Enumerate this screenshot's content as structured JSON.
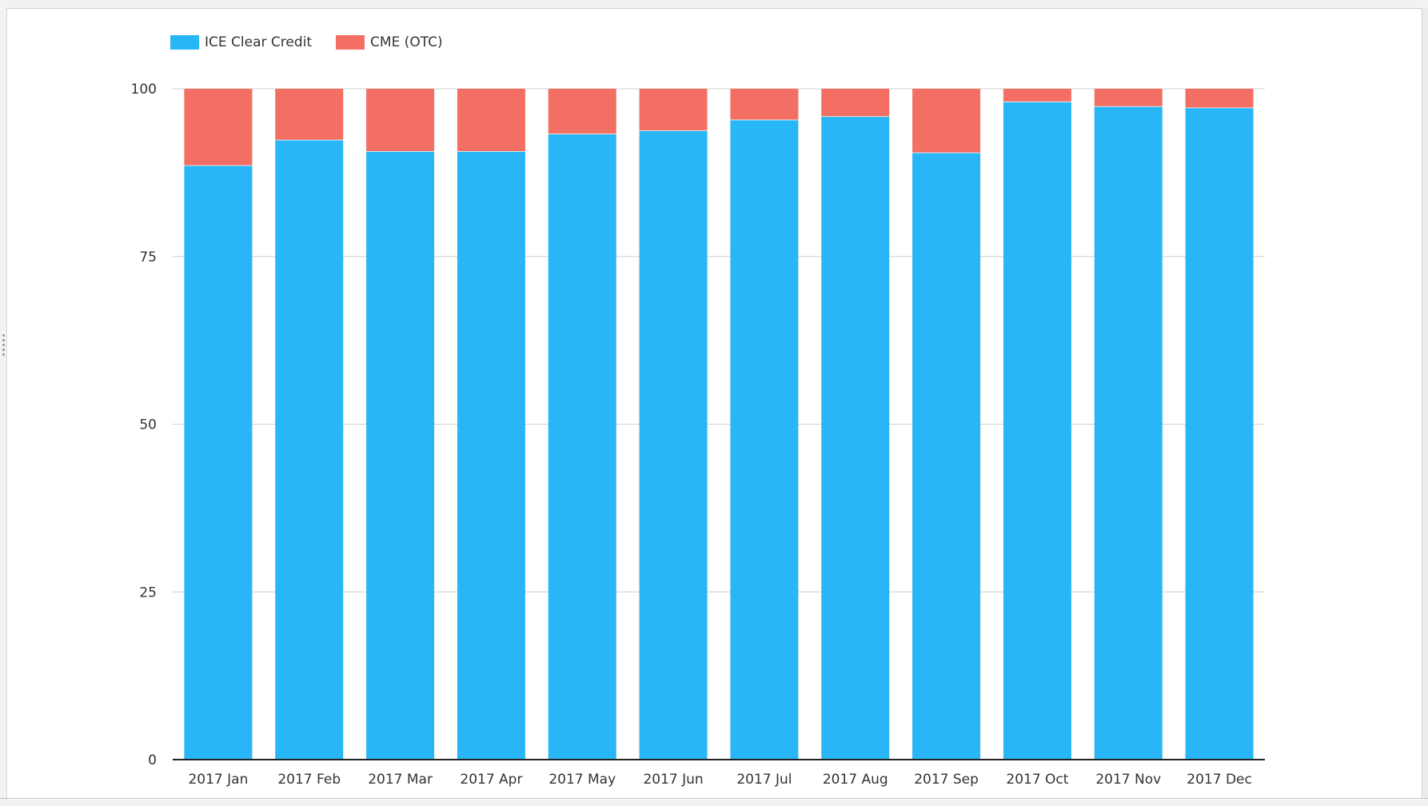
{
  "colors": {
    "ice": "#29b6f6",
    "cme": "#f36f63",
    "grid": "#cfcfcf",
    "axis": "#222222"
  },
  "chart_data": {
    "type": "bar",
    "stacked": true,
    "categories": [
      "2017 Jan",
      "2017 Feb",
      "2017 Mar",
      "2017 Apr",
      "2017 May",
      "2017 Jun",
      "2017 Jul",
      "2017 Aug",
      "2017 Sep",
      "2017 Oct",
      "2017 Nov",
      "2017 Dec"
    ],
    "series": [
      {
        "name": "ICE Clear Credit",
        "color": "#29b6f6",
        "values": [
          88.6,
          92.4,
          90.7,
          90.7,
          93.3,
          93.8,
          95.4,
          95.9,
          90.5,
          98.1,
          97.4,
          97.2
        ]
      },
      {
        "name": "CME (OTC)",
        "color": "#f36f63",
        "values": [
          11.4,
          7.6,
          9.3,
          9.3,
          6.7,
          6.2,
          4.6,
          4.1,
          9.5,
          1.9,
          2.6,
          2.8
        ]
      }
    ],
    "ylim": [
      0,
      100
    ],
    "yticks": [
      0,
      25,
      50,
      75,
      100
    ],
    "grid": true,
    "legend_position": "top-left",
    "title": "",
    "xlabel": "",
    "ylabel": ""
  }
}
